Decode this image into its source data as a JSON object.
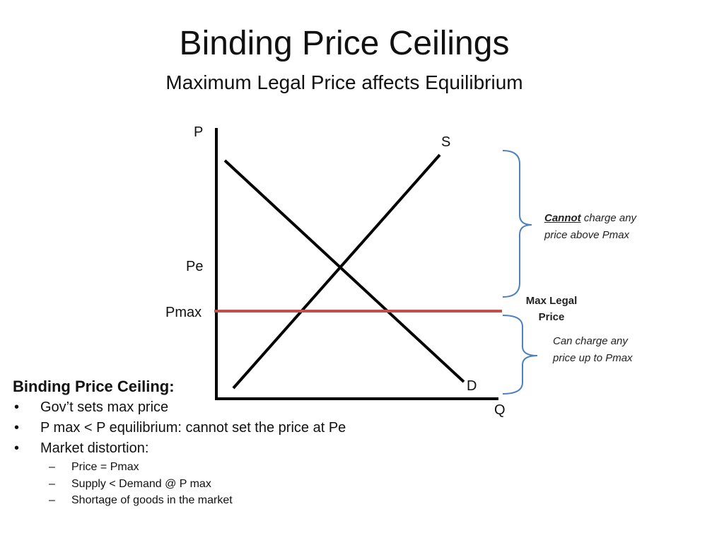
{
  "slide": {
    "title": "Binding Price Ceilings",
    "subtitle": "Maximum Legal Price affects Equilibrium"
  },
  "diagram": {
    "axes": {
      "y_label": "P",
      "x_label": "Q"
    },
    "supply_label": "S",
    "demand_label": "D",
    "price_labels": {
      "equilibrium": "Pe",
      "ceiling": "Pmax"
    },
    "ceiling_line_color": "#c0504d",
    "bracket_color": "#4f81bd",
    "upper_note": {
      "emphasis": "Cannot",
      "rest": " charge any",
      "line2": "price above Pmax"
    },
    "max_legal_label": {
      "line1": "Max Legal",
      "line2": "Price"
    },
    "lower_note": {
      "line1": "Can charge any",
      "line2": "price up to Pmax"
    }
  },
  "summary": {
    "heading": "Binding Price Ceiling:",
    "bullets": [
      "Gov’t sets max price",
      "P max < P equilibrium: cannot set the price at Pe",
      "Market distortion:"
    ],
    "sub_bullets": [
      "Price = Pmax",
      "Supply < Demand @ P max",
      "Shortage of goods in the market"
    ]
  }
}
